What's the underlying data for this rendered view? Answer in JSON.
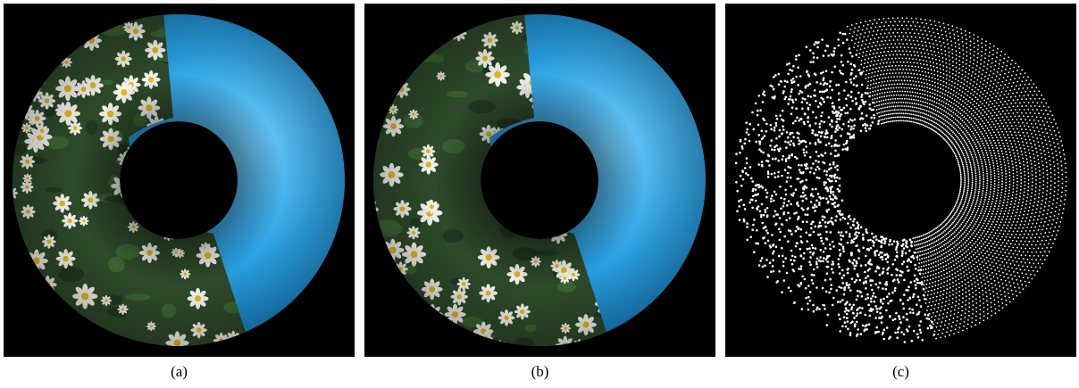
{
  "figure": {
    "panels": [
      {
        "id": "a",
        "caption": "(a)",
        "style": "half flower texture, half solid blue"
      },
      {
        "id": "b",
        "caption": "(b)",
        "style": "half flower texture, half solid blue"
      },
      {
        "id": "c",
        "caption": "(c)",
        "style": "white point samples on black"
      }
    ],
    "colors": {
      "torus_blue": "#2aa3e6",
      "torus_blue_dark": "#0f74b8",
      "background": "#000000",
      "foliage": "#2e4a2a",
      "petal": "#f4f4ee",
      "flower_center": "#e6b81c",
      "point": "#ffffff"
    }
  }
}
